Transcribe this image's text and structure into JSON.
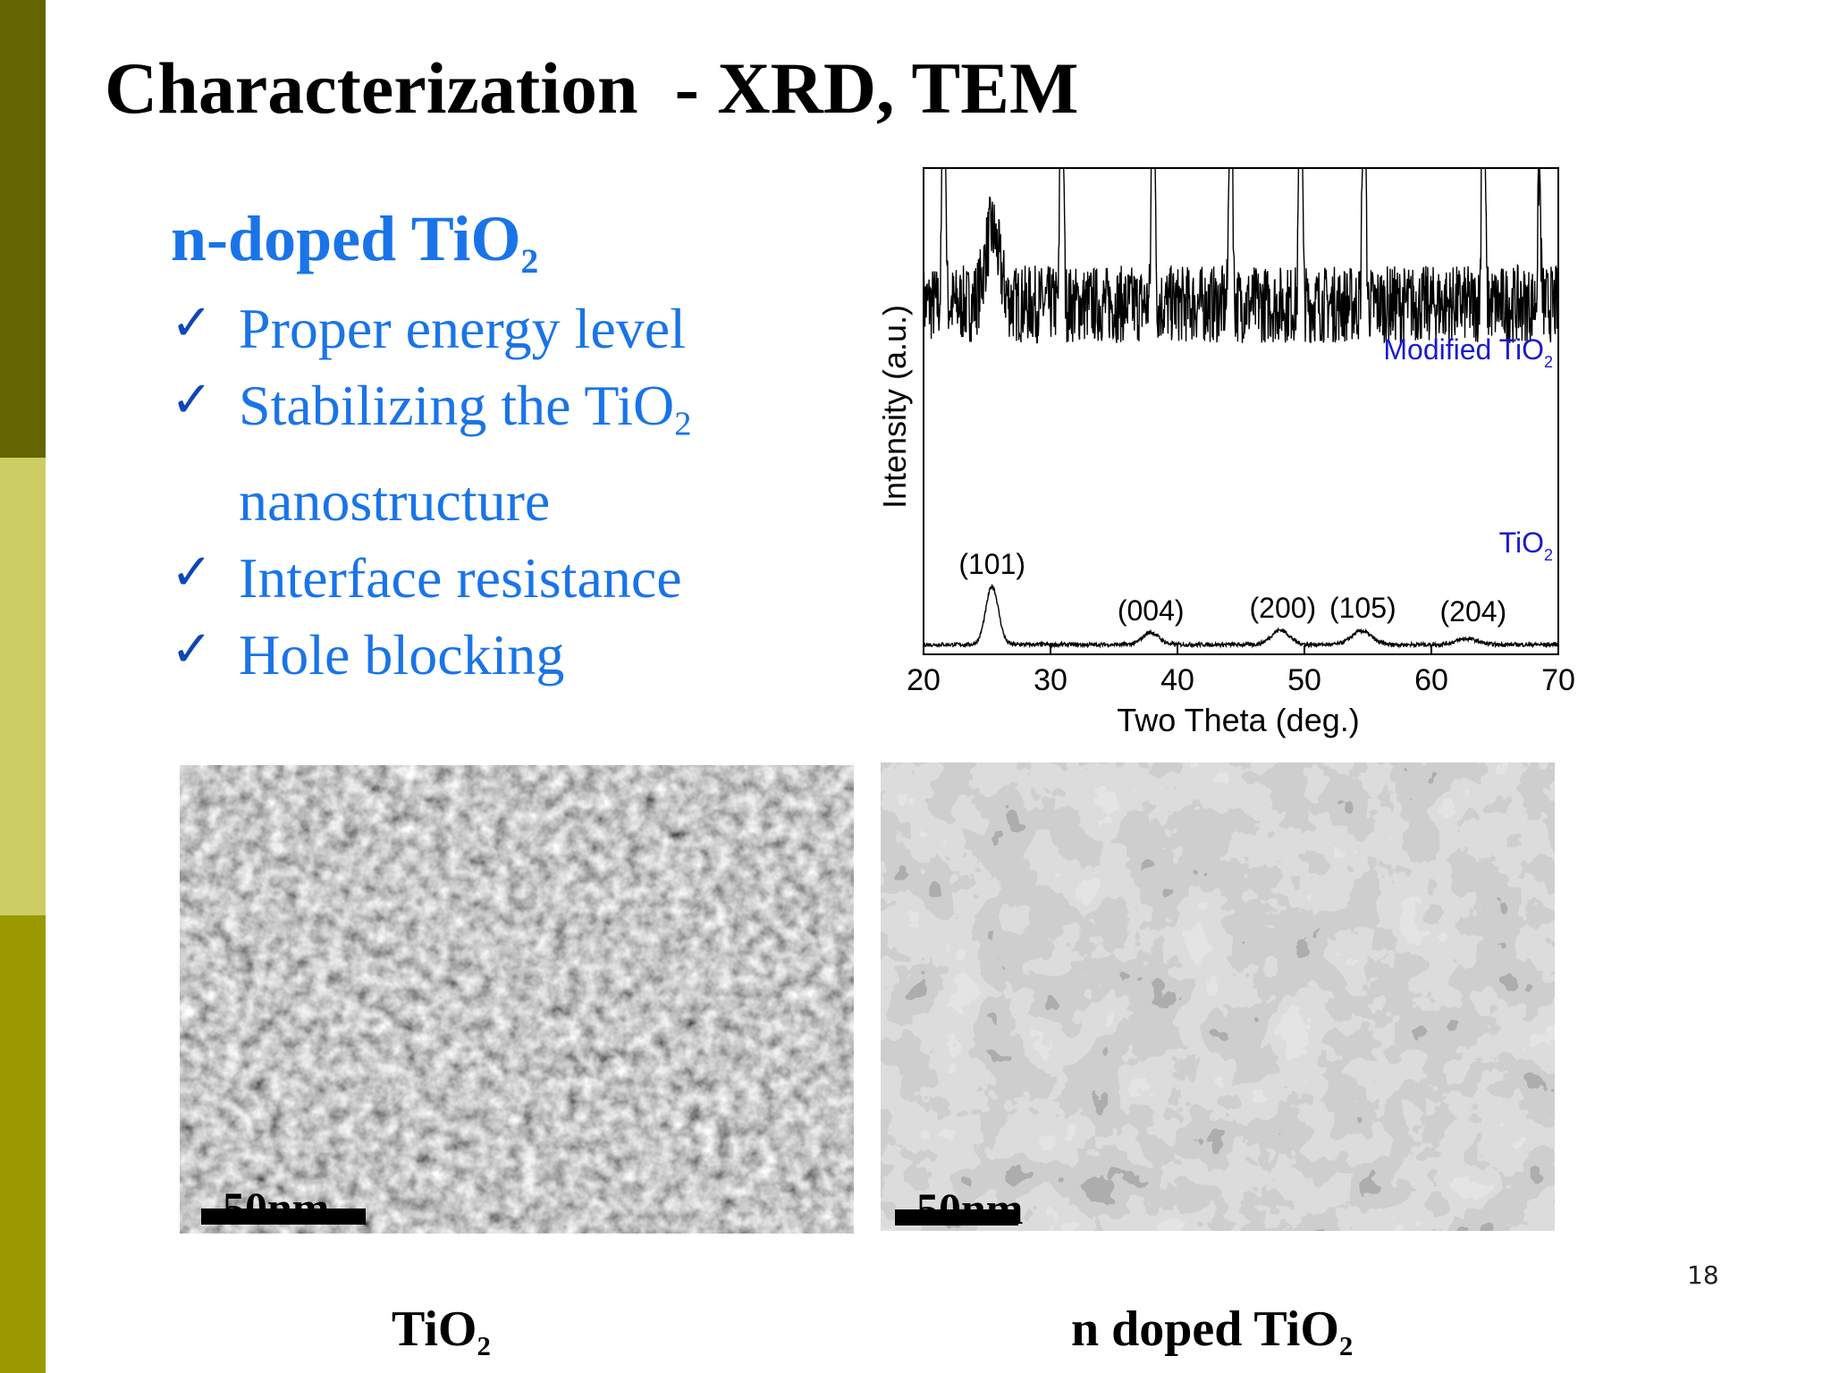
{
  "slide": {
    "title": "Characterization  - XRD, TEM",
    "subtitle_main": "n-doped TiO",
    "subtitle_sub": "2",
    "check_glyph": "✓",
    "bullets": [
      {
        "text": "Proper energy level",
        "sub": ""
      },
      {
        "text": "Stabilizing the TiO",
        "sub": "2"
      },
      {
        "text": "nanostructure",
        "sub": "",
        "continuation": true
      },
      {
        "text": "Interface resistance",
        "sub": ""
      },
      {
        "text": "Hole blocking",
        "sub": ""
      }
    ],
    "page_number": "18",
    "colors": {
      "bar_top": "#636500",
      "bar_middle": "#cdcd66",
      "bar_bottom": "#9b9900",
      "accent_text": "#1a74e8"
    }
  },
  "tem": {
    "left": {
      "scale_label": "50nm",
      "caption_main": "TiO",
      "caption_sub": "2"
    },
    "right": {
      "scale_label": "50nm",
      "caption_main": "n doped TiO",
      "caption_sub": "2"
    }
  },
  "chart_data": {
    "type": "line",
    "xlabel": "Two Theta (deg.)",
    "ylabel": "Intensity (a.u.)",
    "xlim": [
      20,
      70
    ],
    "xticks": [
      "20",
      "30",
      "40",
      "50",
      "60",
      "70"
    ],
    "yticks_shown": false,
    "grid": false,
    "series": [
      {
        "name": "Modified TiO2",
        "label_main": "Modified TiO",
        "label_sub": "2",
        "color": "#1a1acc",
        "baseline": 0.72,
        "noise": 0.08,
        "peaks": [
          {
            "x": 21.6,
            "height": 1.0,
            "width": 0.15
          },
          {
            "x": 25.4,
            "height": 0.15,
            "width": 0.8
          },
          {
            "x": 30.9,
            "height": 1.0,
            "width": 0.15
          },
          {
            "x": 38.1,
            "height": 1.0,
            "width": 0.15
          },
          {
            "x": 44.2,
            "height": 1.0,
            "width": 0.15
          },
          {
            "x": 49.7,
            "height": 1.0,
            "width": 0.15
          },
          {
            "x": 54.7,
            "height": 1.0,
            "width": 0.15
          },
          {
            "x": 64.1,
            "height": 1.0,
            "width": 0.15
          },
          {
            "x": 68.5,
            "height": 0.28,
            "width": 0.15
          }
        ]
      },
      {
        "name": "TiO2",
        "label_main": "TiO",
        "label_sub": "2",
        "color": "#1a1acc",
        "baseline": 0.02,
        "noise": 0.004,
        "peaks": [
          {
            "x": 25.4,
            "height": 0.12,
            "width": 0.7
          },
          {
            "x": 37.9,
            "height": 0.025,
            "width": 0.9
          },
          {
            "x": 48.1,
            "height": 0.03,
            "width": 1.0
          },
          {
            "x": 54.5,
            "height": 0.028,
            "width": 1.1
          },
          {
            "x": 62.8,
            "height": 0.012,
            "width": 1.2
          }
        ]
      }
    ],
    "annotations": [
      {
        "text": "(101)",
        "x": 25.4,
        "y": 0.165
      },
      {
        "text": "(004)",
        "x": 37.9,
        "y": 0.07
      },
      {
        "text": "(200)",
        "x": 48.3,
        "y": 0.075
      },
      {
        "text": "(105)",
        "x": 54.6,
        "y": 0.075
      },
      {
        "text": "(204)",
        "x": 63.3,
        "y": 0.068
      }
    ]
  }
}
